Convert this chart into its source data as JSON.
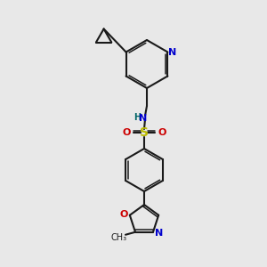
{
  "bg_color": "#e8e8e8",
  "bond_color": "#1a1a1a",
  "atom_colors": {
    "N": "#0000cc",
    "O": "#cc0000",
    "S": "#bbbb00",
    "H": "#006666",
    "C": "#1a1a1a"
  },
  "figsize": [
    3.0,
    3.0
  ],
  "dpi": 100,
  "xlim": [
    0,
    300
  ],
  "ylim": [
    0,
    300
  ]
}
